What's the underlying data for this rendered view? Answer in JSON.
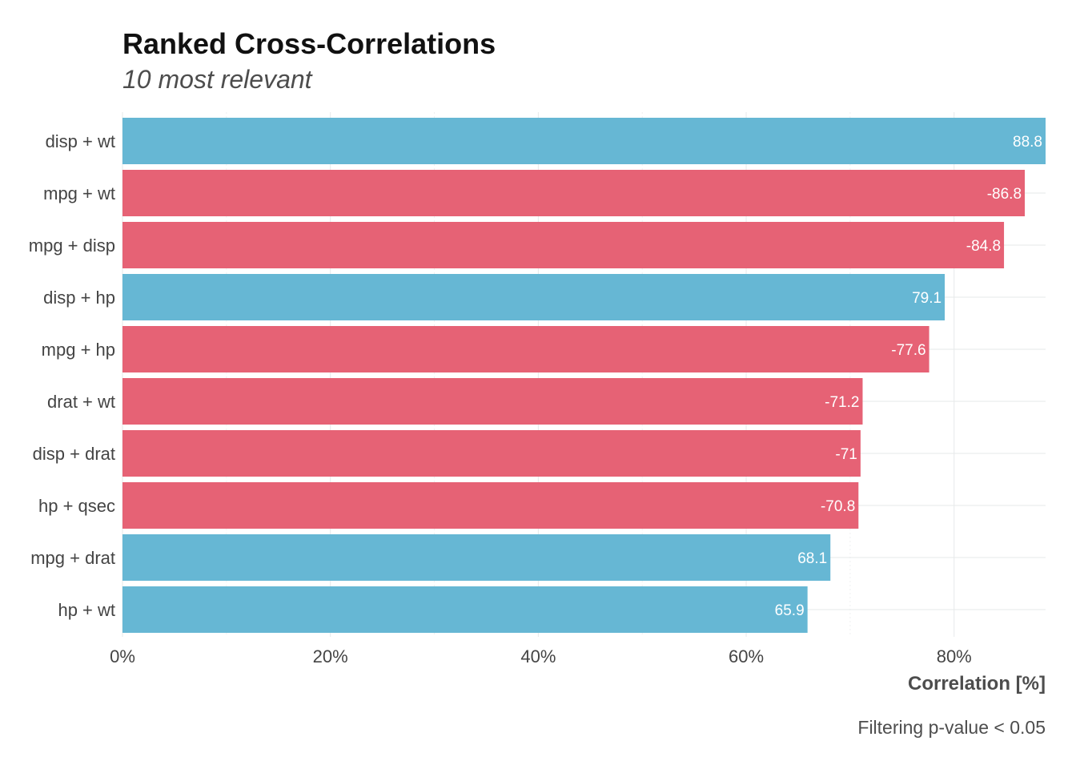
{
  "chart_data": {
    "type": "bar",
    "orientation": "horizontal",
    "title": "Ranked Cross-Correlations",
    "subtitle": "10 most relevant",
    "xlabel": "Correlation [%]",
    "ylabel": "",
    "caption": "Filtering p-value < 0.05",
    "xlim": [
      0,
      88.8
    ],
    "xticks": [
      0,
      20,
      40,
      60,
      80
    ],
    "xtick_labels": [
      "0%",
      "20%",
      "40%",
      "60%",
      "80%"
    ],
    "grid": true,
    "legend": "none",
    "colors": {
      "positive": "#66b7d4",
      "negative": "#e66275"
    },
    "categories": [
      "disp + wt",
      "mpg + wt",
      "mpg + disp",
      "disp + hp",
      "mpg + hp",
      "drat + wt",
      "disp + drat",
      "hp + qsec",
      "mpg + drat",
      "hp + wt"
    ],
    "values": [
      88.8,
      -86.8,
      -84.8,
      79.1,
      -77.6,
      -71.2,
      -71,
      -70.8,
      68.1,
      65.9
    ],
    "value_labels": [
      "88.8",
      "-86.8",
      "-84.8",
      "79.1",
      "-77.6",
      "-71.2",
      "-71",
      "-70.8",
      "68.1",
      "65.9"
    ]
  }
}
